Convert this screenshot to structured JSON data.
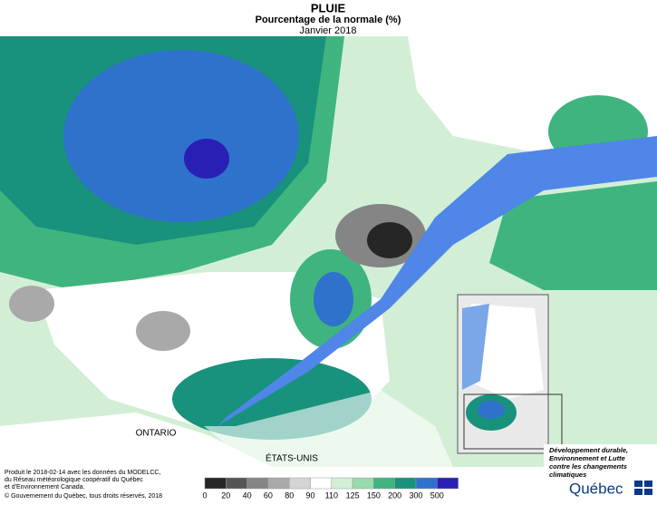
{
  "header": {
    "title": "PLUIE",
    "subtitle": "Pourcentage de la normale (%)",
    "period": "Janvier 2018"
  },
  "map_labels": {
    "ontario": "ONTARIO",
    "usa": "ÉTATS-UNIS"
  },
  "legend": {
    "ticks": [
      0,
      20,
      40,
      60,
      80,
      90,
      110,
      125,
      150,
      200,
      300,
      500
    ],
    "colors": [
      "#262626",
      "#555555",
      "#858585",
      "#a9a9a9",
      "#d4d4d4",
      "#ffffff",
      "#d2efd6",
      "#97dcaa",
      "#3fb47f",
      "#18927c",
      "#2f72cc",
      "#2a1fb5"
    ]
  },
  "footer": {
    "lines": [
      "Produit le 2018-02-14 avec les données du MODELCC,",
      "du Réseau météorologique coopératif du Québec",
      "et d'Environnement Canada."
    ],
    "copyright": "© Gouvernement du Québec, tous droits réservés, 2018"
  },
  "logo": {
    "lines": [
      "Développement durable,",
      "Environnement et Lutte",
      "contre les changements",
      "climatiques"
    ],
    "name": "Québec"
  }
}
